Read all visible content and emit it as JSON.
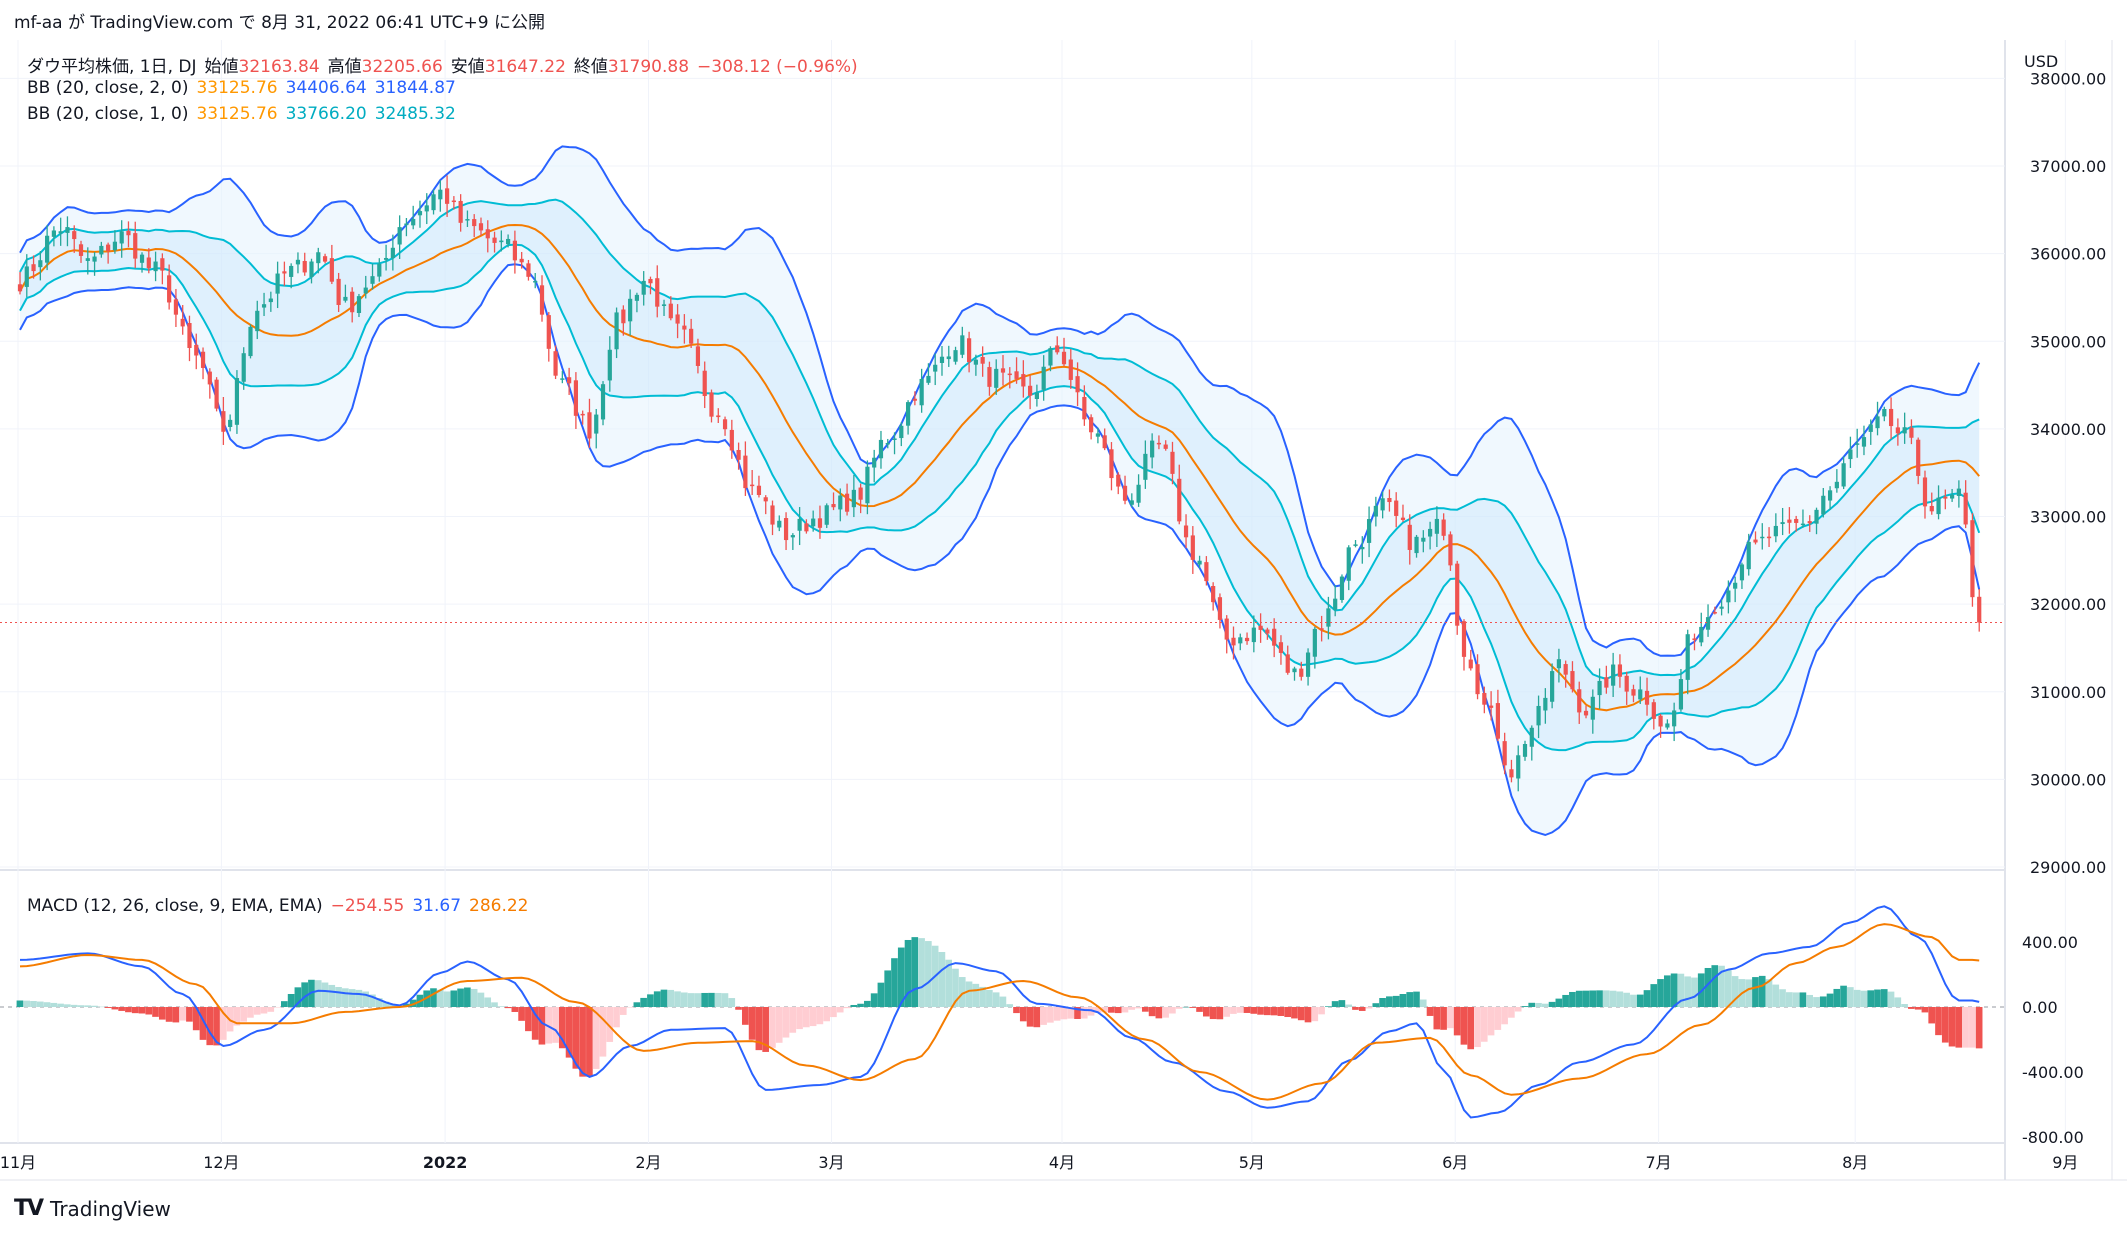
{
  "caption": "mf-aa が TradingView.com で 8月 31, 2022 06:41 UTC+9 に公開",
  "currency": "USD",
  "ohlc_legend": {
    "symbol": "ダウ平均株価, 1日, DJ",
    "open_label": "始値",
    "open": "32163.84",
    "high_label": "高値",
    "high": "32205.66",
    "low_label": "安値",
    "low": "31647.22",
    "close_label": "終値",
    "close": "31790.88",
    "change": "−308.12 (−0.96%)"
  },
  "bb2_legend": {
    "name": "BB (20, close, 2, 0)",
    "basis": "33125.76",
    "upper": "34406.64",
    "lower": "31844.87"
  },
  "bb1_legend": {
    "name": "BB (20, close, 1, 0)",
    "basis": "33125.76",
    "upper": "33766.20",
    "lower": "32485.32"
  },
  "macd_legend": {
    "name": "MACD (12, 26, close, 9, EMA, EMA)",
    "hist": "−254.55",
    "macd": "31.67",
    "signal": "286.22"
  },
  "colors": {
    "up": "#26a69a",
    "down": "#ef5350",
    "basis": "#f57c00",
    "bb2": "#2962ff",
    "bb1": "#00bcd4",
    "fill": "#e3f2fd",
    "hist_up_strong": "#26a69a",
    "hist_up_weak": "#b2dfdb",
    "hist_down_strong": "#ef5350",
    "hist_down_weak": "#ffcdd2"
  },
  "footer_brand": "TradingView",
  "chart_data": [
    {
      "type": "candlestick",
      "ylim": [
        29000,
        38000
      ],
      "y_ticks": [
        "29000.00",
        "30000.00",
        "31000.00",
        "32000.00",
        "33000.00",
        "34000.00",
        "35000.00",
        "36000.00",
        "37000.00",
        "38000.00"
      ],
      "x_ticks": [
        "11月",
        "12月",
        "2022",
        "2月",
        "3月",
        "4月",
        "5月",
        "6月",
        "7月",
        "8月",
        "9月"
      ],
      "price_anchors": [
        [
          0,
          35700
        ],
        [
          6,
          36300
        ],
        [
          10,
          35900
        ],
        [
          15,
          36200
        ],
        [
          20,
          35800
        ],
        [
          26,
          34800
        ],
        [
          30,
          34000
        ],
        [
          35,
          35400
        ],
        [
          40,
          35800
        ],
        [
          44,
          36000
        ],
        [
          48,
          35400
        ],
        [
          52,
          35700
        ],
        [
          57,
          36400
        ],
        [
          62,
          36700
        ],
        [
          66,
          36300
        ],
        [
          71,
          36100
        ],
        [
          75,
          35800
        ],
        [
          80,
          34500
        ],
        [
          84,
          34000
        ],
        [
          88,
          35200
        ],
        [
          92,
          35700
        ],
        [
          97,
          35100
        ],
        [
          103,
          34200
        ],
        [
          108,
          33300
        ],
        [
          113,
          32800
        ],
        [
          118,
          33000
        ],
        [
          123,
          33200
        ],
        [
          128,
          33900
        ],
        [
          133,
          34500
        ],
        [
          138,
          35000
        ],
        [
          143,
          34600
        ],
        [
          149,
          34400
        ],
        [
          153,
          34900
        ],
        [
          158,
          34000
        ],
        [
          163,
          33200
        ],
        [
          168,
          33800
        ],
        [
          173,
          32600
        ],
        [
          178,
          31600
        ],
        [
          183,
          31700
        ],
        [
          188,
          31200
        ],
        [
          192,
          31800
        ],
        [
          197,
          32700
        ],
        [
          201,
          33100
        ],
        [
          206,
          32700
        ],
        [
          210,
          32900
        ],
        [
          213,
          31500
        ],
        [
          217,
          30700
        ],
        [
          220,
          30100
        ],
        [
          223,
          30600
        ],
        [
          227,
          31300
        ],
        [
          231,
          30800
        ],
        [
          235,
          31200
        ],
        [
          239,
          31000
        ],
        [
          243,
          30600
        ],
        [
          247,
          31700
        ],
        [
          251,
          32100
        ],
        [
          255,
          32600
        ],
        [
          259,
          32800
        ],
        [
          263,
          32900
        ],
        [
          267,
          33300
        ],
        [
          271,
          33800
        ],
        [
          275,
          34100
        ],
        [
          278,
          33900
        ],
        [
          282,
          33100
        ],
        [
          286,
          33200
        ],
        [
          289,
          31790
        ]
      ],
      "current_price": 31790.88
    },
    {
      "type": "macd",
      "ylim": [
        -800,
        600
      ],
      "y_ticks": [
        "400.00",
        "0.00",
        "-400.00",
        "-800.00"
      ],
      "macd_anchors": [
        [
          0,
          290
        ],
        [
          10,
          330
        ],
        [
          18,
          250
        ],
        [
          24,
          80
        ],
        [
          30,
          -240
        ],
        [
          36,
          -140
        ],
        [
          44,
          100
        ],
        [
          50,
          80
        ],
        [
          56,
          10
        ],
        [
          62,
          210
        ],
        [
          66,
          280
        ],
        [
          72,
          170
        ],
        [
          78,
          -120
        ],
        [
          84,
          -430
        ],
        [
          90,
          -240
        ],
        [
          96,
          -140
        ],
        [
          104,
          -130
        ],
        [
          110,
          -510
        ],
        [
          118,
          -480
        ],
        [
          124,
          -430
        ],
        [
          132,
          110
        ],
        [
          138,
          270
        ],
        [
          144,
          220
        ],
        [
          150,
          20
        ],
        [
          158,
          -20
        ],
        [
          164,
          -190
        ],
        [
          170,
          -340
        ],
        [
          178,
          -520
        ],
        [
          184,
          -620
        ],
        [
          190,
          -580
        ],
        [
          196,
          -330
        ],
        [
          202,
          -150
        ],
        [
          206,
          -100
        ],
        [
          210,
          -390
        ],
        [
          214,
          -680
        ],
        [
          218,
          -650
        ],
        [
          224,
          -480
        ],
        [
          230,
          -340
        ],
        [
          238,
          -230
        ],
        [
          246,
          50
        ],
        [
          252,
          230
        ],
        [
          258,
          330
        ],
        [
          264,
          370
        ],
        [
          270,
          520
        ],
        [
          275,
          620
        ],
        [
          280,
          430
        ],
        [
          286,
          40
        ]
      ],
      "signal_anchors": [
        [
          0,
          250
        ],
        [
          10,
          320
        ],
        [
          18,
          290
        ],
        [
          26,
          140
        ],
        [
          32,
          -100
        ],
        [
          40,
          -100
        ],
        [
          48,
          -30
        ],
        [
          56,
          0
        ],
        [
          66,
          160
        ],
        [
          74,
          180
        ],
        [
          82,
          30
        ],
        [
          92,
          -270
        ],
        [
          100,
          -220
        ],
        [
          108,
          -210
        ],
        [
          116,
          -360
        ],
        [
          124,
          -450
        ],
        [
          132,
          -320
        ],
        [
          140,
          100
        ],
        [
          148,
          160
        ],
        [
          156,
          60
        ],
        [
          166,
          -200
        ],
        [
          174,
          -400
        ],
        [
          184,
          -570
        ],
        [
          192,
          -470
        ],
        [
          200,
          -220
        ],
        [
          208,
          -190
        ],
        [
          214,
          -420
        ],
        [
          220,
          -540
        ],
        [
          230,
          -440
        ],
        [
          240,
          -290
        ],
        [
          248,
          -110
        ],
        [
          256,
          120
        ],
        [
          262,
          270
        ],
        [
          268,
          370
        ],
        [
          275,
          510
        ],
        [
          282,
          430
        ],
        [
          286,
          290
        ]
      ],
      "last_values": {
        "histogram": -254.55,
        "macd": 31.67,
        "signal": 286.22
      }
    }
  ]
}
